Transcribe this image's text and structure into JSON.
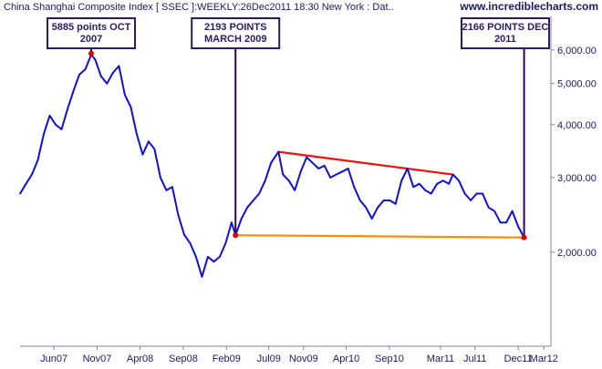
{
  "chart_data": {
    "type": "line",
    "title": "China Shanghai Composite Index [ SSEC ]:WEEKLY:26Dec2011 18:30 New York : Dat..",
    "source": "www.incrediblecharts.com",
    "y_scale": "log",
    "ylim": [
      1200,
      7200
    ],
    "xlim": [
      "2007-02-01",
      "2012-03-26"
    ],
    "grid": false,
    "x_ticks": [
      {
        "date": "2007-06-01",
        "label": "Jun07"
      },
      {
        "date": "2007-11-01",
        "label": "Nov07"
      },
      {
        "date": "2008-04-01",
        "label": "Apr08"
      },
      {
        "date": "2008-09-01",
        "label": "Sep08"
      },
      {
        "date": "2009-02-01",
        "label": "Feb09"
      },
      {
        "date": "2009-07-01",
        "label": "Jul09"
      },
      {
        "date": "2009-11-01",
        "label": "Nov09"
      },
      {
        "date": "2010-04-01",
        "label": "Apr10"
      },
      {
        "date": "2010-09-01",
        "label": "Sep10"
      },
      {
        "date": "2011-03-01",
        "label": "Mar11"
      },
      {
        "date": "2011-07-01",
        "label": "Jul11"
      },
      {
        "date": "2011-12-01",
        "label": "Dec11"
      },
      {
        "date": "2012-03-01",
        "label": "Mar12"
      }
    ],
    "y_ticks": [
      {
        "value": 6000,
        "label": "6,000.00"
      },
      {
        "value": 5000,
        "label": "5,000.00"
      },
      {
        "value": 4000,
        "label": "4,000.00"
      },
      {
        "value": 3000,
        "label": "3,000.00"
      },
      {
        "value": 2000,
        "label": "2,000.00"
      }
    ],
    "series": [
      {
        "color": "#1010dd",
        "points": [
          {
            "x": "2007-02-01",
            "y": 2750
          },
          {
            "x": "2007-02-22",
            "y": 2900
          },
          {
            "x": "2007-03-15",
            "y": 3050
          },
          {
            "x": "2007-04-05",
            "y": 3300
          },
          {
            "x": "2007-04-26",
            "y": 3800
          },
          {
            "x": "2007-05-17",
            "y": 4200
          },
          {
            "x": "2007-06-07",
            "y": 4000
          },
          {
            "x": "2007-06-28",
            "y": 3900
          },
          {
            "x": "2007-07-19",
            "y": 4350
          },
          {
            "x": "2007-08-09",
            "y": 4800
          },
          {
            "x": "2007-08-30",
            "y": 5250
          },
          {
            "x": "2007-09-20",
            "y": 5400
          },
          {
            "x": "2007-10-11",
            "y": 5850
          },
          {
            "x": "2007-10-25",
            "y": 5700
          },
          {
            "x": "2007-11-15",
            "y": 5200
          },
          {
            "x": "2007-12-06",
            "y": 5000
          },
          {
            "x": "2007-12-27",
            "y": 5300
          },
          {
            "x": "2008-01-17",
            "y": 5500
          },
          {
            "x": "2008-02-07",
            "y": 4700
          },
          {
            "x": "2008-02-28",
            "y": 4400
          },
          {
            "x": "2008-03-20",
            "y": 3800
          },
          {
            "x": "2008-04-10",
            "y": 3400
          },
          {
            "x": "2008-05-01",
            "y": 3650
          },
          {
            "x": "2008-05-22",
            "y": 3500
          },
          {
            "x": "2008-06-12",
            "y": 3000
          },
          {
            "x": "2008-07-03",
            "y": 2800
          },
          {
            "x": "2008-07-24",
            "y": 2850
          },
          {
            "x": "2008-08-14",
            "y": 2450
          },
          {
            "x": "2008-09-04",
            "y": 2200
          },
          {
            "x": "2008-09-25",
            "y": 2100
          },
          {
            "x": "2008-10-16",
            "y": 1950
          },
          {
            "x": "2008-11-06",
            "y": 1750
          },
          {
            "x": "2008-11-27",
            "y": 1950
          },
          {
            "x": "2008-12-18",
            "y": 1900
          },
          {
            "x": "2009-01-08",
            "y": 1950
          },
          {
            "x": "2009-01-29",
            "y": 2100
          },
          {
            "x": "2009-02-19",
            "y": 2350
          },
          {
            "x": "2009-03-05",
            "y": 2193
          },
          {
            "x": "2009-03-26",
            "y": 2400
          },
          {
            "x": "2009-04-16",
            "y": 2550
          },
          {
            "x": "2009-05-07",
            "y": 2650
          },
          {
            "x": "2009-05-28",
            "y": 2750
          },
          {
            "x": "2009-06-18",
            "y": 2950
          },
          {
            "x": "2009-07-09",
            "y": 3250
          },
          {
            "x": "2009-08-04",
            "y": 3450
          },
          {
            "x": "2009-08-20",
            "y": 3050
          },
          {
            "x": "2009-09-10",
            "y": 2950
          },
          {
            "x": "2009-10-01",
            "y": 2800
          },
          {
            "x": "2009-10-22",
            "y": 3100
          },
          {
            "x": "2009-11-12",
            "y": 3350
          },
          {
            "x": "2009-12-03",
            "y": 3250
          },
          {
            "x": "2009-12-24",
            "y": 3150
          },
          {
            "x": "2010-01-14",
            "y": 3200
          },
          {
            "x": "2010-02-04",
            "y": 3000
          },
          {
            "x": "2010-02-25",
            "y": 3050
          },
          {
            "x": "2010-03-18",
            "y": 3100
          },
          {
            "x": "2010-04-08",
            "y": 3150
          },
          {
            "x": "2010-04-29",
            "y": 2850
          },
          {
            "x": "2010-05-20",
            "y": 2650
          },
          {
            "x": "2010-06-10",
            "y": 2550
          },
          {
            "x": "2010-07-01",
            "y": 2400
          },
          {
            "x": "2010-07-22",
            "y": 2550
          },
          {
            "x": "2010-08-12",
            "y": 2650
          },
          {
            "x": "2010-09-02",
            "y": 2650
          },
          {
            "x": "2010-09-23",
            "y": 2600
          },
          {
            "x": "2010-10-14",
            "y": 2950
          },
          {
            "x": "2010-11-04",
            "y": 3150
          },
          {
            "x": "2010-11-25",
            "y": 2850
          },
          {
            "x": "2010-12-16",
            "y": 2900
          },
          {
            "x": "2011-01-06",
            "y": 2800
          },
          {
            "x": "2011-01-27",
            "y": 2750
          },
          {
            "x": "2011-02-17",
            "y": 2900
          },
          {
            "x": "2011-03-10",
            "y": 2950
          },
          {
            "x": "2011-03-31",
            "y": 2900
          },
          {
            "x": "2011-04-14",
            "y": 3050
          },
          {
            "x": "2011-05-05",
            "y": 2950
          },
          {
            "x": "2011-05-26",
            "y": 2750
          },
          {
            "x": "2011-06-16",
            "y": 2650
          },
          {
            "x": "2011-07-07",
            "y": 2750
          },
          {
            "x": "2011-07-28",
            "y": 2750
          },
          {
            "x": "2011-08-18",
            "y": 2550
          },
          {
            "x": "2011-09-08",
            "y": 2500
          },
          {
            "x": "2011-09-29",
            "y": 2350
          },
          {
            "x": "2011-10-20",
            "y": 2350
          },
          {
            "x": "2011-11-10",
            "y": 2500
          },
          {
            "x": "2011-12-01",
            "y": 2300
          },
          {
            "x": "2011-12-22",
            "y": 2166
          }
        ]
      }
    ],
    "trendlines": [
      {
        "name": "resistance",
        "color": "#ee1111",
        "from": {
          "x": "2009-08-04",
          "y": 3450
        },
        "to": {
          "x": "2011-04-14",
          "y": 3050
        }
      },
      {
        "name": "support",
        "color": "#ff8c00",
        "from": {
          "x": "2009-03-05",
          "y": 2193
        },
        "to": {
          "x": "2011-12-22",
          "y": 2166
        }
      }
    ],
    "annotations": [
      {
        "id": "oct2007",
        "lines": [
          "5885 points OCT",
          "2007"
        ],
        "point": {
          "x": "2007-10-11",
          "y": 5885
        }
      },
      {
        "id": "mar2009",
        "lines": [
          "2193 POINTS",
          "MARCH 2009"
        ],
        "point": {
          "x": "2009-03-05",
          "y": 2193
        }
      },
      {
        "id": "dec2011",
        "lines": [
          "2166 POINTS DEC",
          "2011"
        ],
        "point": {
          "x": "2011-12-22",
          "y": 2166
        }
      }
    ]
  }
}
